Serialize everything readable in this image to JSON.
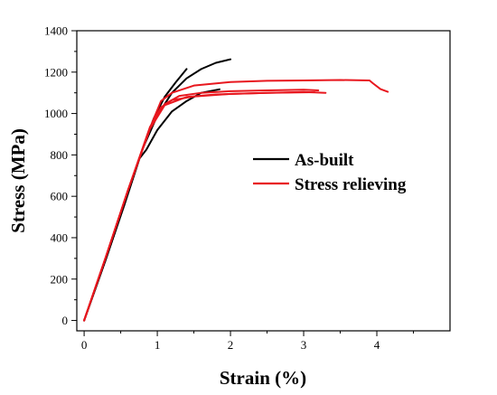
{
  "chart_data": {
    "type": "line",
    "title": "",
    "xlabel": "Strain (%)",
    "ylabel": "Stress (MPa)",
    "xlim": [
      -0.1,
      5.0
    ],
    "ylim": [
      -50,
      1400
    ],
    "xticks": [
      0,
      1,
      2,
      3,
      4
    ],
    "yticks": [
      0,
      200,
      400,
      600,
      800,
      1000,
      1200,
      1400
    ],
    "grid": false,
    "legend_position": "center-right",
    "series": [
      {
        "name": "As-built",
        "color": "#000000",
        "curves": [
          [
            [
              0,
              0
            ],
            [
              0.3,
              300
            ],
            [
              0.55,
              560
            ],
            [
              0.8,
              830
            ],
            [
              0.95,
              975
            ],
            [
              1.1,
              1080
            ],
            [
              1.25,
              1150
            ],
            [
              1.4,
              1215
            ]
          ],
          [
            [
              0,
              0
            ],
            [
              0.3,
              300
            ],
            [
              0.55,
              560
            ],
            [
              0.8,
              830
            ],
            [
              1.0,
              990
            ],
            [
              1.2,
              1100
            ],
            [
              1.4,
              1170
            ],
            [
              1.6,
              1215
            ],
            [
              1.8,
              1245
            ],
            [
              2.0,
              1262
            ]
          ],
          [
            [
              0,
              0
            ],
            [
              0.3,
              300
            ],
            [
              0.55,
              560
            ],
            [
              0.75,
              780
            ],
            [
              0.85,
              825
            ],
            [
              1.0,
              920
            ],
            [
              1.2,
              1010
            ],
            [
              1.4,
              1060
            ],
            [
              1.6,
              1100
            ],
            [
              1.85,
              1117
            ]
          ]
        ]
      },
      {
        "name": "Stress relieving",
        "color": "#e8171e",
        "curves": [
          [
            [
              0,
              0
            ],
            [
              0.3,
              310
            ],
            [
              0.6,
              630
            ],
            [
              0.9,
              930
            ],
            [
              1.05,
              1060
            ],
            [
              1.2,
              1100
            ],
            [
              1.5,
              1135
            ],
            [
              2.0,
              1152
            ],
            [
              2.5,
              1158
            ],
            [
              3.0,
              1160
            ],
            [
              3.5,
              1162
            ],
            [
              3.9,
              1160
            ],
            [
              3.95,
              1145
            ],
            [
              4.05,
              1118
            ],
            [
              4.15,
              1105
            ]
          ],
          [
            [
              0,
              0
            ],
            [
              0.3,
              310
            ],
            [
              0.6,
              630
            ],
            [
              0.9,
              935
            ],
            [
              1.1,
              1045
            ],
            [
              1.3,
              1085
            ],
            [
              1.6,
              1100
            ],
            [
              2.0,
              1108
            ],
            [
              2.5,
              1112
            ],
            [
              3.0,
              1115
            ],
            [
              3.2,
              1112
            ]
          ],
          [
            [
              0,
              0
            ],
            [
              0.3,
              310
            ],
            [
              0.6,
              630
            ],
            [
              0.9,
              930
            ],
            [
              1.05,
              1030
            ],
            [
              1.2,
              1065
            ],
            [
              1.5,
              1082
            ],
            [
              2.0,
              1095
            ],
            [
              2.5,
              1100
            ],
            [
              3.0,
              1104
            ],
            [
              3.3,
              1100
            ]
          ],
          [
            [
              0,
              0
            ],
            [
              0.3,
              310
            ],
            [
              0.6,
              630
            ],
            [
              0.9,
              925
            ],
            [
              1.1,
              1040
            ],
            [
              1.4,
              1080
            ],
            [
              1.8,
              1092
            ],
            [
              2.5,
              1100
            ],
            [
              3.15,
              1103
            ]
          ]
        ]
      }
    ]
  }
}
